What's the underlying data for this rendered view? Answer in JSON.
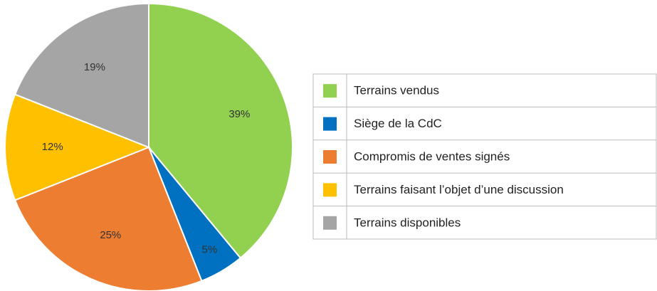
{
  "chart_data": {
    "type": "pie",
    "categories": [
      "Terrains vendus",
      "Siège de la CdC",
      "Compromis de ventes signés",
      "Terrains faisant l’objet d’une discussion",
      "Terrains disponibles"
    ],
    "values": [
      39,
      5,
      25,
      12,
      19
    ],
    "value_labels": [
      "39%",
      "5%",
      "25%",
      "12%",
      "19%"
    ],
    "colors": [
      "#92d050",
      "#0070c0",
      "#ed7d31",
      "#ffc000",
      "#a5a5a5"
    ]
  }
}
